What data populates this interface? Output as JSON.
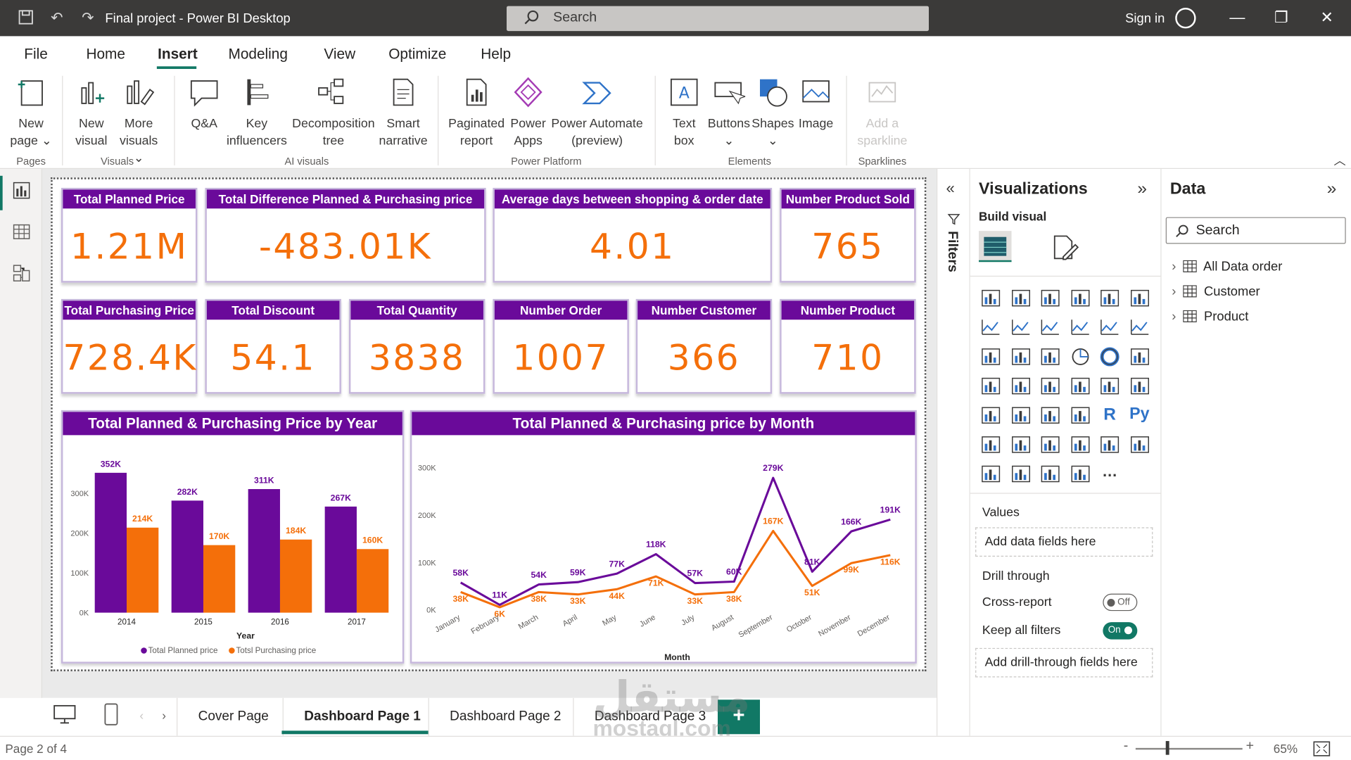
{
  "titlebar": {
    "title": "Final project - Power BI Desktop",
    "search_placeholder": "Search",
    "signin": "Sign in"
  },
  "ribbon_tabs": [
    "File",
    "Home",
    "Insert",
    "Modeling",
    "View",
    "Optimize",
    "Help"
  ],
  "ribbon": {
    "new_page": [
      "New",
      "page"
    ],
    "new_visual": [
      "New",
      "visual"
    ],
    "more_visuals": [
      "More",
      "visuals"
    ],
    "qa": "Q&A",
    "key_influencers": [
      "Key",
      "influencers"
    ],
    "decomposition_tree": [
      "Decomposition",
      "tree"
    ],
    "smart_narrative": [
      "Smart",
      "narrative"
    ],
    "paginated_report": [
      "Paginated",
      "report"
    ],
    "power_apps": [
      "Power",
      "Apps"
    ],
    "power_automate": [
      "Power Automate",
      "(preview)"
    ],
    "text_box": [
      "Text",
      "box"
    ],
    "buttons": "Buttons",
    "shapes": "Shapes",
    "image": "Image",
    "add_sparkline": [
      "Add a",
      "sparkline"
    ],
    "groups": {
      "pages": "Pages",
      "visuals": "Visuals",
      "ai_visuals": "AI visuals",
      "power_platform": "Power Platform",
      "elements": "Elements",
      "sparklines": "Sparklines"
    }
  },
  "cards_row1": [
    {
      "title": "Total Planned Price",
      "value": "1.21M"
    },
    {
      "title": "Total Difference Planned & Purchasing price",
      "value": "-483.01K"
    },
    {
      "title": "Average days between shopping & order date",
      "value": "4.01"
    },
    {
      "title": "Number Product Sold",
      "value": "765"
    }
  ],
  "cards_row2": [
    {
      "title": "Total Purchasing Price",
      "value": "728.4K"
    },
    {
      "title": "Total Discount",
      "value": "54.1"
    },
    {
      "title": "Total Quantity",
      "value": "3838"
    },
    {
      "title": "Number Order",
      "value": "1007"
    },
    {
      "title": "Number Customer",
      "value": "366"
    },
    {
      "title": "Number Product",
      "value": "710"
    }
  ],
  "chart_data": [
    {
      "type": "bar",
      "title": "Total Planned & Purchasing Price by Year",
      "xlabel": "Year",
      "ylabel": "",
      "categories": [
        "2014",
        "2015",
        "2016",
        "2017"
      ],
      "series": [
        {
          "name": "Total Planned price",
          "values": [
            352,
            282,
            311,
            267
          ],
          "labels": [
            "352K",
            "282K",
            "311K",
            "267K"
          ]
        },
        {
          "name": "Totsl Purchasing price",
          "values": [
            214,
            170,
            184,
            160
          ],
          "labels": [
            "214K",
            "170K",
            "184K",
            "160K"
          ]
        }
      ],
      "yticks": [
        "0K",
        "100K",
        "200K",
        "300K"
      ],
      "ylim": [
        0,
        360
      ],
      "colors": [
        "#6a0a9a",
        "#f46f0a"
      ],
      "legend": "bottom"
    },
    {
      "type": "line",
      "title": "Total Planned & Purchasing price by Month",
      "xlabel": "Month",
      "ylabel": "",
      "categories": [
        "January",
        "February",
        "March",
        "April",
        "May",
        "June",
        "July",
        "August",
        "September",
        "October",
        "November",
        "December"
      ],
      "series": [
        {
          "name": "Total Planned price",
          "values": [
            58,
            11,
            54,
            59,
            77,
            118,
            57,
            60,
            279,
            81,
            166,
            191
          ],
          "labels": [
            "58K",
            "11K",
            "54K",
            "59K",
            "77K",
            "118K",
            "57K",
            "60K",
            "279K",
            "81K",
            "166K",
            "191K"
          ]
        },
        {
          "name": "Totsl Purchasing price",
          "values": [
            38,
            6,
            38,
            33,
            44,
            71,
            33,
            38,
            167,
            51,
            99,
            116
          ],
          "labels": [
            "38K",
            "6K",
            "38K",
            "33K",
            "44K",
            "71K",
            "33K",
            "38K",
            "167K",
            "51K",
            "99K",
            "116K"
          ]
        }
      ],
      "yticks": [
        "0K",
        "100K",
        "200K",
        "300K"
      ],
      "ylim": [
        0,
        300
      ],
      "colors": [
        "#6a0a9a",
        "#f46f0a"
      ],
      "legend": "bottom"
    }
  ],
  "filters_label": "Filters",
  "visualizations": {
    "title": "Visualizations",
    "build_visual": "Build visual",
    "values_label": "Values",
    "values_placeholder": "Add data fields here",
    "drill_through": "Drill through",
    "cross_report": "Cross-report",
    "cross_report_state": "Off",
    "keep_filters": "Keep all filters",
    "keep_filters_state": "On",
    "drill_placeholder": "Add drill-through fields here"
  },
  "data_pane": {
    "title": "Data",
    "search_placeholder": "Search",
    "tables": [
      "All Data order",
      "Customer",
      "Product"
    ]
  },
  "page_tabs": [
    "Cover Page",
    "Dashboard Page 1",
    "Dashboard Page 2",
    "Dashboard Page 3"
  ],
  "status": {
    "page": "Page 2 of 4",
    "zoom": "65%"
  },
  "watermark": [
    "مستقل",
    "mostaql.com"
  ]
}
